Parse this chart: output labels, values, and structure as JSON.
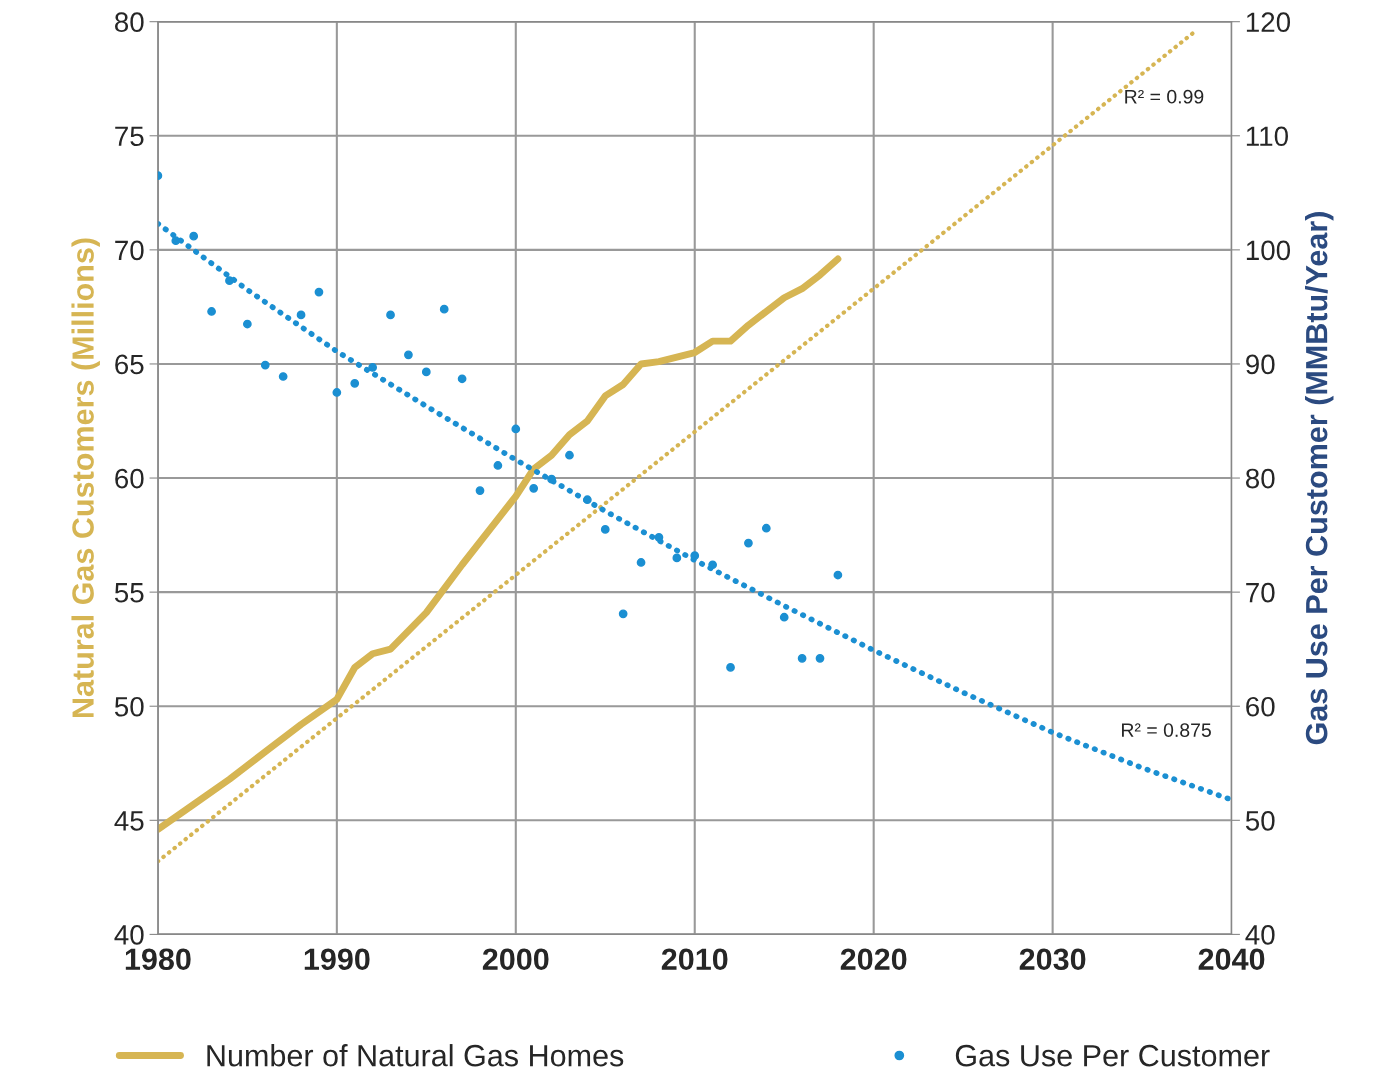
{
  "chart_data": {
    "type": "line",
    "xlim": [
      1980,
      2040
    ],
    "xticks": [
      1980,
      1990,
      2000,
      2010,
      2020,
      2030,
      2040
    ],
    "ylim": [
      40,
      80
    ],
    "yticks": [
      40,
      45,
      50,
      55,
      60,
      65,
      70,
      75,
      80
    ],
    "y2lim": [
      40,
      120
    ],
    "y2ticks": [
      40,
      50,
      60,
      70,
      80,
      90,
      100,
      110,
      120
    ],
    "ylabel": "Natural Gas Customers (Millions)",
    "y2label": "Gas Use Per Customer (MMBtu/Year)",
    "grid": true,
    "legend": "bottom",
    "series": [
      {
        "name": "Number of Natural Gas Homes",
        "color": "#d6b553",
        "x": [
          1980,
          1982,
          1984,
          1986,
          1988,
          1990,
          1991,
          1992,
          1993,
          1995,
          1997,
          1999,
          2000,
          2001,
          2002,
          2003,
          2004,
          2005,
          2006,
          2007,
          2008,
          2010,
          2011,
          2012,
          2013,
          2014,
          2015,
          2016,
          2017,
          2018
        ],
        "values": [
          44.6,
          45.7,
          46.8,
          48.0,
          49.2,
          50.3,
          51.7,
          52.3,
          52.5,
          54.1,
          56.2,
          58.2,
          59.2,
          60.4,
          61.0,
          61.9,
          62.5,
          63.6,
          64.1,
          65.0,
          65.1,
          65.5,
          66.0,
          66.0,
          66.7,
          67.3,
          67.9,
          68.3,
          68.9,
          69.6
        ]
      },
      {
        "name": "Gas Use Per Customer",
        "type": "scatter",
        "axis": "y2",
        "marker": "circle",
        "color": "#1b8fd2",
        "x": [
          1980,
          1981,
          1982,
          1983,
          1984,
          1985,
          1986,
          1987,
          1988,
          1989,
          1990,
          1991,
          1992,
          1993,
          1994,
          1995,
          1996,
          1997,
          1998,
          1999,
          2000,
          2001,
          2002,
          2003,
          2004,
          2005,
          2006,
          2007,
          2008,
          2009,
          2010,
          2011,
          2012,
          2013,
          2014,
          2015,
          2016,
          2017,
          2018
        ],
        "values": [
          106.5,
          100.8,
          101.2,
          94.6,
          97.3,
          93.5,
          89.9,
          88.9,
          94.3,
          96.3,
          87.5,
          88.3,
          89.7,
          94.3,
          90.8,
          89.3,
          94.8,
          88.7,
          78.9,
          81.1,
          84.3,
          79.1,
          79.9,
          82.0,
          78.1,
          75.5,
          68.1,
          72.6,
          74.8,
          73.0,
          73.2,
          72.4,
          63.4,
          74.3,
          75.6,
          67.8,
          64.2,
          64.2,
          71.5
        ]
      },
      {
        "type": "line",
        "line_style": "dotted",
        "color": "#d6b553",
        "x": [
          1980,
          2038
        ],
        "values": [
          43.2,
          79.6
        ]
      },
      {
        "type": "line",
        "axis": "y2",
        "line_style": "dotted",
        "color": "#1b8fd2",
        "x": [
          1980,
          1985,
          1990,
          1995,
          2000,
          2005,
          2010,
          2015,
          2020,
          2025,
          2030,
          2035,
          2040
        ],
        "values": [
          102.3,
          96.5,
          91.1,
          86.3,
          81.6,
          77.1,
          72.8,
          68.8,
          64.9,
          61.2,
          57.7,
          54.6,
          51.8
        ]
      }
    ],
    "annotations": [
      "R² = 0.99",
      "R² = 0.875"
    ]
  }
}
